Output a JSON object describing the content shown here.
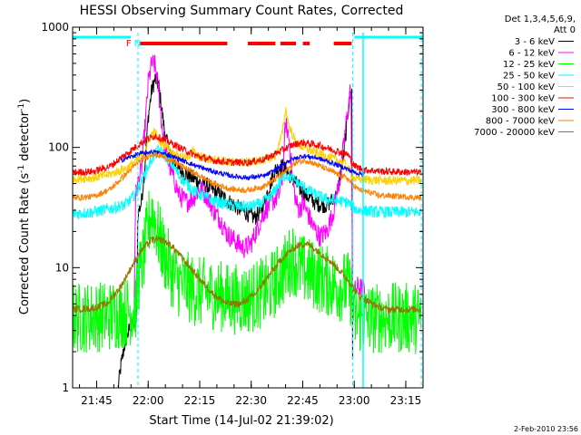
{
  "chart_data": {
    "type": "line",
    "title": "HESSI Observing Summary Count Rates, Corrected",
    "xlabel": "Start Time (14-Jul-02 21:39:02)",
    "ylabel_prefix": "Corrected Count Rate (s",
    "ylabel_exp1": "-1",
    "ylabel_mid": " detector",
    "ylabel_exp2": "-1",
    "ylabel_suffix": ")",
    "footer": "2-Feb-2010 23:56",
    "yscale": "log",
    "ylim": [
      1,
      1000
    ],
    "xlim_minutes": [
      -1.03,
      101.0
    ],
    "x_ticks": [
      {
        "m": 5.97,
        "label": "21:45"
      },
      {
        "m": 20.97,
        "label": "22:00"
      },
      {
        "m": 35.97,
        "label": "22:15"
      },
      {
        "m": 50.97,
        "label": "22:30"
      },
      {
        "m": 65.97,
        "label": "22:45"
      },
      {
        "m": 80.97,
        "label": "23:00"
      },
      {
        "m": 95.97,
        "label": "23:15"
      }
    ],
    "y_ticks": [
      {
        "v": 1,
        "label": "1"
      },
      {
        "v": 10,
        "label": "10"
      },
      {
        "v": 100,
        "label": "100"
      },
      {
        "v": 1000,
        "label": "1000"
      }
    ],
    "legend_header": [
      "Det 1,3,4,5,6,9,",
      "Att 0"
    ],
    "legend_position": "top-right, outside plot",
    "annotations": [
      {
        "text": "F",
        "color": "#ff0000",
        "m": 15.3
      },
      {
        "text": "N",
        "color": "#00ffff",
        "m": 17.9
      }
    ],
    "night_bars": {
      "color": "#00ffff",
      "segments_minutes": [
        [
          -1.03,
          15.9
        ],
        [
          81.0,
          101.0
        ]
      ],
      "dashed_lines_minutes": [
        18.0,
        80.5,
        100.5
      ]
    },
    "flare_bars": {
      "color": "#ff0000",
      "segments_minutes": [
        [
          18.5,
          44.0
        ],
        [
          50.0,
          58.0
        ],
        [
          59.5,
          64.0
        ],
        [
          66.0,
          68.0
        ],
        [
          75.0,
          80.2
        ]
      ]
    },
    "series": [
      {
        "name": "3 - 6 keV",
        "color": "#000000",
        "noise": 0.07,
        "points": [
          [
            12.2,
            1.0
          ],
          [
            13.0,
            1.5
          ],
          [
            14.0,
            2.2
          ],
          [
            15.0,
            2.8
          ],
          [
            16.0,
            3.3
          ],
          [
            17.5,
            3.6
          ],
          [
            18.0,
            28
          ],
          [
            19.0,
            35
          ],
          [
            20.0,
            70
          ],
          [
            21.0,
            180
          ],
          [
            22.0,
            300
          ],
          [
            23.0,
            370
          ],
          [
            24.0,
            330
          ],
          [
            25.0,
            200
          ],
          [
            26.0,
            120
          ],
          [
            28.0,
            80
          ],
          [
            30.0,
            65
          ],
          [
            34.0,
            55
          ],
          [
            38.0,
            48
          ],
          [
            42.0,
            40
          ],
          [
            46.0,
            33
          ],
          [
            50.0,
            28
          ],
          [
            52.0,
            26
          ],
          [
            54.0,
            30
          ],
          [
            56.0,
            45
          ],
          [
            58.0,
            65
          ],
          [
            60.0,
            70
          ],
          [
            62.0,
            60
          ],
          [
            64.0,
            50
          ],
          [
            66.0,
            42
          ],
          [
            68.0,
            38
          ],
          [
            70.0,
            34
          ],
          [
            73.0,
            33
          ],
          [
            76.0,
            40
          ],
          [
            78.0,
            90
          ],
          [
            79.5,
            250
          ],
          [
            80.3,
            300
          ],
          [
            80.5,
            1.0
          ]
        ]
      },
      {
        "name": "6 - 12 keV",
        "color": "#ff00ff",
        "noise": 0.09,
        "points": [
          [
            16.9,
            5.0
          ],
          [
            17.3,
            40
          ],
          [
            18.0,
            50
          ],
          [
            19.0,
            65
          ],
          [
            20.0,
            140
          ],
          [
            21.0,
            350
          ],
          [
            22.0,
            500
          ],
          [
            23.0,
            480
          ],
          [
            24.0,
            300
          ],
          [
            25.0,
            150
          ],
          [
            26.0,
            90
          ],
          [
            28.0,
            60
          ],
          [
            30.0,
            40
          ],
          [
            32.0,
            35
          ],
          [
            34.0,
            38
          ],
          [
            36.0,
            45
          ],
          [
            38.0,
            40
          ],
          [
            40.0,
            30
          ],
          [
            42.0,
            25
          ],
          [
            44.0,
            19
          ],
          [
            46.0,
            17
          ],
          [
            48.0,
            15
          ],
          [
            49.0,
            14.5
          ],
          [
            51.0,
            16
          ],
          [
            53.0,
            22
          ],
          [
            55.0,
            30
          ],
          [
            57.0,
            35
          ],
          [
            59.0,
            40
          ],
          [
            60.0,
            55
          ],
          [
            61.0,
            160
          ],
          [
            62.0,
            120
          ],
          [
            63.0,
            55
          ],
          [
            64.0,
            35
          ],
          [
            65.0,
            30
          ],
          [
            66.0,
            35
          ],
          [
            67.0,
            30
          ],
          [
            69.0,
            22
          ],
          [
            71.0,
            18
          ],
          [
            73.0,
            20
          ],
          [
            75.0,
            30
          ],
          [
            77.0,
            60
          ],
          [
            78.5,
            150
          ],
          [
            80.0,
            320
          ],
          [
            80.5,
            6.0
          ],
          [
            82.0,
            7.0
          ],
          [
            84.0,
            6.5
          ]
        ]
      },
      {
        "name": "12 - 25 keV",
        "color": "#00ff00",
        "noise": 0.3,
        "points": [
          [
            -1.0,
            3.8
          ],
          [
            5.0,
            3.9
          ],
          [
            10.0,
            4.0
          ],
          [
            14.0,
            4.2
          ],
          [
            16.5,
            4.5
          ],
          [
            17.5,
            5.0
          ],
          [
            18.0,
            8.0
          ],
          [
            19.0,
            10
          ],
          [
            20.0,
            14
          ],
          [
            21.0,
            22
          ],
          [
            22.0,
            30
          ],
          [
            23.0,
            24
          ],
          [
            24.0,
            18
          ],
          [
            26.0,
            12
          ],
          [
            28.0,
            9
          ],
          [
            30.0,
            7.5
          ],
          [
            35.0,
            6.3
          ],
          [
            40.0,
            6.0
          ],
          [
            45.0,
            5.5
          ],
          [
            50.0,
            5.5
          ],
          [
            55.0,
            6.3
          ],
          [
            58.0,
            7.5
          ],
          [
            61.0,
            10
          ],
          [
            63.0,
            12
          ],
          [
            65.0,
            10
          ],
          [
            68.0,
            9
          ],
          [
            72.0,
            8
          ],
          [
            76.0,
            7
          ],
          [
            79.0,
            7
          ],
          [
            80.5,
            6.0
          ],
          [
            81.0,
            3.8
          ],
          [
            90.0,
            3.8
          ],
          [
            100.5,
            3.8
          ]
        ]
      },
      {
        "name": "25 - 50 keV",
        "color": "#00ffff",
        "noise": 0.05,
        "points": [
          [
            -1.0,
            28
          ],
          [
            5.0,
            29
          ],
          [
            10.0,
            31
          ],
          [
            14.0,
            33
          ],
          [
            16.0,
            37
          ],
          [
            18.0,
            45
          ],
          [
            20.0,
            60
          ],
          [
            22.0,
            80
          ],
          [
            24.0,
            95
          ],
          [
            26.0,
            85
          ],
          [
            28.0,
            72
          ],
          [
            30.0,
            58
          ],
          [
            32.0,
            50
          ],
          [
            35.0,
            42
          ],
          [
            40.0,
            36
          ],
          [
            45.0,
            33
          ],
          [
            50.0,
            32
          ],
          [
            54.0,
            34
          ],
          [
            57.0,
            40
          ],
          [
            59.0,
            50
          ],
          [
            61.0,
            60
          ],
          [
            63.0,
            55
          ],
          [
            65.0,
            50
          ],
          [
            67.0,
            45
          ],
          [
            70.0,
            40
          ],
          [
            73.0,
            37
          ],
          [
            76.0,
            36
          ],
          [
            79.0,
            35
          ],
          [
            80.5,
            32
          ],
          [
            82.0,
            30
          ],
          [
            88.0,
            29
          ],
          [
            100.5,
            29
          ]
        ]
      },
      {
        "name": "50 - 100 keV",
        "color": "#ffd000",
        "noise": 0.04,
        "points": [
          [
            -1.0,
            55
          ],
          [
            5.0,
            56
          ],
          [
            10.0,
            60
          ],
          [
            15.0,
            68
          ],
          [
            18.0,
            80
          ],
          [
            20.0,
            95
          ],
          [
            22.0,
            130
          ],
          [
            23.0,
            135
          ],
          [
            24.0,
            115
          ],
          [
            26.0,
            105
          ],
          [
            28.0,
            90
          ],
          [
            30.0,
            85
          ],
          [
            32.0,
            80
          ],
          [
            34.0,
            95
          ],
          [
            35.0,
            85
          ],
          [
            38.0,
            80
          ],
          [
            42.0,
            78
          ],
          [
            46.0,
            75
          ],
          [
            50.0,
            75
          ],
          [
            54.0,
            78
          ],
          [
            58.0,
            85
          ],
          [
            60.0,
            130
          ],
          [
            61.0,
            210
          ],
          [
            62.0,
            150
          ],
          [
            64.0,
            110
          ],
          [
            66.0,
            100
          ],
          [
            70.0,
            90
          ],
          [
            74.0,
            82
          ],
          [
            78.0,
            75
          ],
          [
            81.0,
            55
          ],
          [
            84.0,
            54
          ],
          [
            90.0,
            53
          ],
          [
            100.5,
            53
          ]
        ]
      },
      {
        "name": "100 - 300 keV",
        "color": "#ff0000",
        "noise": 0.03,
        "points": [
          [
            -1.0,
            62
          ],
          [
            5.0,
            63
          ],
          [
            10.0,
            70
          ],
          [
            15.0,
            90
          ],
          [
            20.0,
            115
          ],
          [
            23.0,
            125
          ],
          [
            26.0,
            115
          ],
          [
            30.0,
            100
          ],
          [
            35.0,
            85
          ],
          [
            40.0,
            78
          ],
          [
            45.0,
            75
          ],
          [
            50.0,
            75
          ],
          [
            55.0,
            80
          ],
          [
            60.0,
            95
          ],
          [
            63.0,
            105
          ],
          [
            66.0,
            110
          ],
          [
            70.0,
            105
          ],
          [
            75.0,
            95
          ],
          [
            79.0,
            88
          ],
          [
            81.0,
            70
          ],
          [
            84.0,
            65
          ],
          [
            90.0,
            63
          ],
          [
            100.5,
            62
          ]
        ]
      },
      {
        "name": "300 - 800 keV",
        "color": "#0000ff",
        "noise": 0.02,
        "points": [
          [
            13.0,
            78
          ],
          [
            18.0,
            88
          ],
          [
            22.0,
            92
          ],
          [
            26.0,
            88
          ],
          [
            30.0,
            80
          ],
          [
            35.0,
            70
          ],
          [
            40.0,
            63
          ],
          [
            45.0,
            58
          ],
          [
            50.0,
            56
          ],
          [
            55.0,
            58
          ],
          [
            58.0,
            65
          ],
          [
            62.0,
            78
          ],
          [
            66.0,
            85
          ],
          [
            70.0,
            82
          ],
          [
            74.0,
            75
          ],
          [
            78.0,
            68
          ],
          [
            81.0,
            62
          ],
          [
            84.0,
            60
          ]
        ]
      },
      {
        "name": "800 - 7000 keV",
        "color": "#ff8000",
        "noise": 0.025,
        "points": [
          [
            -1.0,
            38
          ],
          [
            5.0,
            39
          ],
          [
            10.0,
            45
          ],
          [
            15.0,
            62
          ],
          [
            18.0,
            75
          ],
          [
            22.0,
            88
          ],
          [
            25.0,
            85
          ],
          [
            30.0,
            72
          ],
          [
            35.0,
            60
          ],
          [
            40.0,
            50
          ],
          [
            45.0,
            45
          ],
          [
            50.0,
            44
          ],
          [
            55.0,
            48
          ],
          [
            60.0,
            60
          ],
          [
            64.0,
            75
          ],
          [
            67.0,
            78
          ],
          [
            70.0,
            72
          ],
          [
            75.0,
            62
          ],
          [
            79.0,
            55
          ],
          [
            82.0,
            45
          ],
          [
            88.0,
            40
          ],
          [
            95.0,
            39
          ],
          [
            100.5,
            38
          ]
        ]
      },
      {
        "name": "7000 - 20000 keV",
        "color": "#8b7a00",
        "noise": 0.03,
        "points": [
          [
            -1.0,
            4.5
          ],
          [
            5.0,
            4.6
          ],
          [
            9.0,
            5.0
          ],
          [
            13.0,
            7.0
          ],
          [
            16.0,
            10
          ],
          [
            19.0,
            14
          ],
          [
            22.0,
            17
          ],
          [
            25.0,
            17
          ],
          [
            28.0,
            15
          ],
          [
            32.0,
            11
          ],
          [
            36.0,
            8
          ],
          [
            40.0,
            6.0
          ],
          [
            44.0,
            5.0
          ],
          [
            48.0,
            5.0
          ],
          [
            52.0,
            6.0
          ],
          [
            56.0,
            8.5
          ],
          [
            60.0,
            12
          ],
          [
            64.0,
            15
          ],
          [
            67.0,
            16
          ],
          [
            70.0,
            14
          ],
          [
            73.0,
            12
          ],
          [
            76.0,
            10
          ],
          [
            79.0,
            8
          ],
          [
            82.0,
            6
          ],
          [
            86.0,
            5
          ],
          [
            90.0,
            4.5
          ],
          [
            100.5,
            4.5
          ]
        ]
      }
    ]
  }
}
